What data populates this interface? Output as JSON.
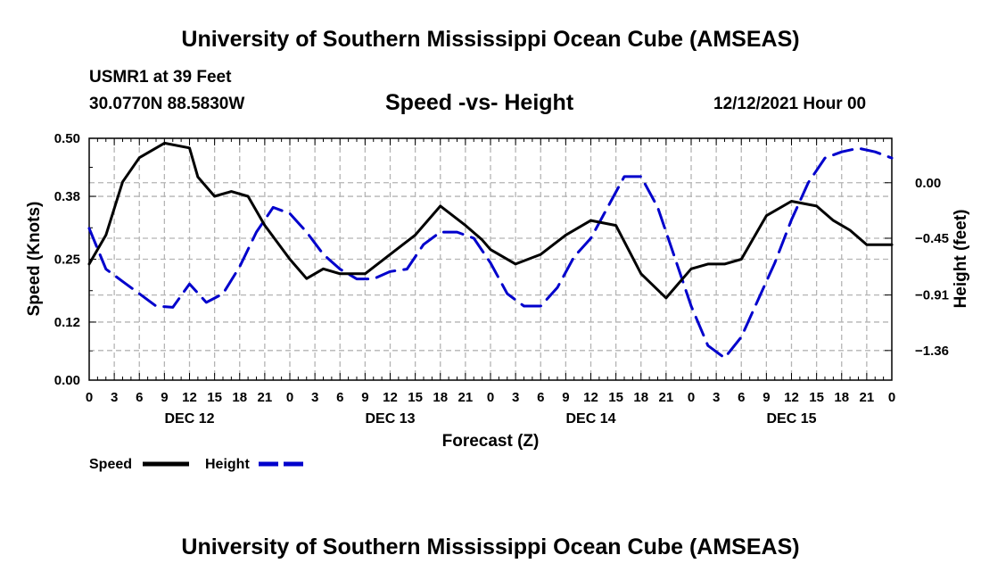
{
  "header": {
    "title": "University of Southern Mississippi Ocean Cube (AMSEAS)",
    "station": "USMR1 at 39 Feet",
    "coords": "30.0770N  88.5830W",
    "chart_title": "Speed -vs- Height",
    "datetime": "12/12/2021 Hour 00"
  },
  "footer": {
    "title": "University of Southern Mississippi Ocean Cube (AMSEAS)"
  },
  "legend": {
    "speed_label": "Speed",
    "height_label": "Height"
  },
  "colors": {
    "speed": "#000000",
    "height": "#0000cc",
    "grid": "#b4b4b4"
  },
  "chart_data": {
    "type": "line",
    "title": "Speed -vs- Height",
    "xlabel": "Forecast (Z)",
    "ylabel": "Speed (Knots)",
    "y2label": "Height (feet)",
    "x_range": [
      0,
      96
    ],
    "ylim": [
      0,
      0.5
    ],
    "y2lim": [
      -1.6,
      0.36
    ],
    "x_ticks": [
      0,
      3,
      6,
      9,
      12,
      15,
      18,
      21,
      24,
      27,
      30,
      33,
      36,
      39,
      42,
      45,
      48,
      51,
      54,
      57,
      60,
      63,
      66,
      69,
      72,
      75,
      78,
      81,
      84,
      87,
      90,
      93,
      96
    ],
    "x_tick_labels": [
      "0",
      "3",
      "6",
      "9",
      "12",
      "15",
      "18",
      "21",
      "0",
      "3",
      "6",
      "9",
      "12",
      "15",
      "18",
      "21",
      "0",
      "3",
      "6",
      "9",
      "12",
      "15",
      "18",
      "21",
      "0",
      "3",
      "6",
      "9",
      "12",
      "15",
      "18",
      "21",
      "0"
    ],
    "day_labels": [
      {
        "x": 12,
        "label": "DEC 12"
      },
      {
        "x": 36,
        "label": "DEC 13"
      },
      {
        "x": 60,
        "label": "DEC 14"
      },
      {
        "x": 84,
        "label": "DEC 15"
      }
    ],
    "y_ticks": [
      0,
      0.12,
      0.25,
      0.38,
      0.5
    ],
    "y_tick_labels": [
      "0.00",
      "0.12",
      "0.25",
      "0.38",
      "0.50"
    ],
    "y2_ticks": [
      0,
      -0.45,
      -0.91,
      -1.36
    ],
    "y2_tick_labels": [
      "0.00",
      "−0.45",
      "−0.91",
      "−1.36"
    ],
    "grid": true,
    "series": [
      {
        "name": "Speed",
        "axis": "left",
        "style": "solid",
        "x": [
          0,
          2,
          4,
          6,
          9,
          12,
          13,
          15,
          17,
          19,
          21,
          24,
          26,
          28,
          30,
          33,
          36,
          39,
          42,
          45,
          47,
          48,
          51,
          54,
          57,
          60,
          63,
          66,
          69,
          72,
          74,
          76,
          78,
          81,
          84,
          87,
          89,
          91,
          93,
          96
        ],
        "values": [
          0.24,
          0.3,
          0.41,
          0.46,
          0.49,
          0.48,
          0.42,
          0.38,
          0.39,
          0.38,
          0.32,
          0.25,
          0.21,
          0.23,
          0.22,
          0.22,
          0.26,
          0.3,
          0.36,
          0.32,
          0.29,
          0.27,
          0.24,
          0.26,
          0.3,
          0.33,
          0.32,
          0.22,
          0.17,
          0.23,
          0.24,
          0.24,
          0.25,
          0.34,
          0.37,
          0.36,
          0.33,
          0.31,
          0.28,
          0.28
        ]
      },
      {
        "name": "Height",
        "axis": "right",
        "style": "dashed",
        "x": [
          0,
          2,
          4,
          6,
          8,
          10,
          12,
          14,
          16,
          18,
          20,
          22,
          24,
          26,
          28,
          30,
          32,
          34,
          36,
          38,
          40,
          42,
          44,
          46,
          48,
          50,
          52,
          54,
          56,
          58,
          60,
          62,
          64,
          66,
          68,
          70,
          72,
          74,
          76,
          78,
          80,
          82,
          84,
          86,
          88,
          90,
          92,
          94,
          96
        ],
        "values": [
          -0.37,
          -0.7,
          -0.8,
          -0.9,
          -1.0,
          -1.01,
          -0.82,
          -0.97,
          -0.9,
          -0.68,
          -0.4,
          -0.2,
          -0.25,
          -0.4,
          -0.58,
          -0.7,
          -0.78,
          -0.78,
          -0.72,
          -0.7,
          -0.5,
          -0.4,
          -0.4,
          -0.45,
          -0.65,
          -0.9,
          -1.0,
          -1.0,
          -0.85,
          -0.6,
          -0.45,
          -0.2,
          0.05,
          0.05,
          -0.2,
          -0.6,
          -1.0,
          -1.32,
          -1.42,
          -1.25,
          -0.95,
          -0.65,
          -0.3,
          0.0,
          0.2,
          0.25,
          0.28,
          0.25,
          0.2
        ]
      }
    ]
  }
}
